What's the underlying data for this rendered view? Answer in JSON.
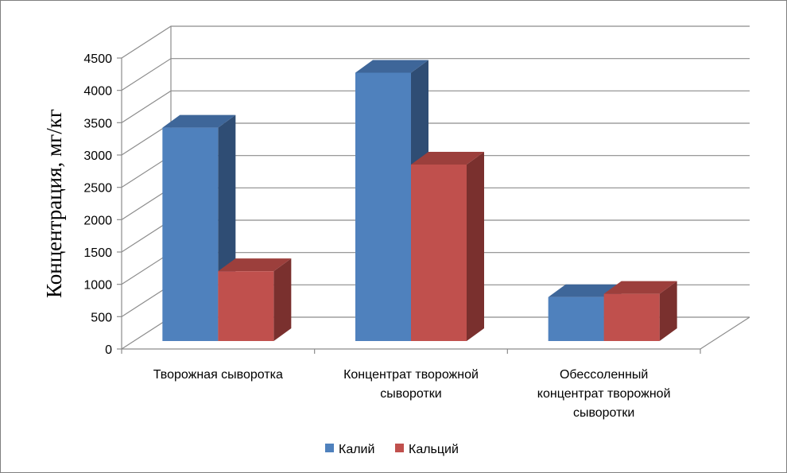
{
  "chart_data": {
    "type": "bar",
    "title": "",
    "xlabel": "",
    "ylabel": "Концентрация, мг/кг",
    "ylim": [
      0,
      4500
    ],
    "yticks": [
      0,
      500,
      1000,
      1500,
      2000,
      2500,
      3000,
      3500,
      4000,
      4500
    ],
    "grid": true,
    "legend": "bottom",
    "categories": [
      [
        "Творожная сыворотка"
      ],
      [
        "Концентрат творожной",
        "сыворотки"
      ],
      [
        "Обессоленный",
        "концентрат творожной",
        "сыворотки"
      ]
    ],
    "series": [
      {
        "name": "Калий",
        "values": [
          3300,
          4150,
          680
        ]
      },
      {
        "name": "Кальций",
        "values": [
          1080,
          2730,
          730
        ]
      }
    ],
    "colors": {
      "series": [
        "#4f81bd",
        "#c0504d"
      ],
      "series_side": [
        "#2f4d74",
        "#7a302e"
      ],
      "series_top": [
        "#3e6699",
        "#9c3f3c"
      ]
    }
  }
}
